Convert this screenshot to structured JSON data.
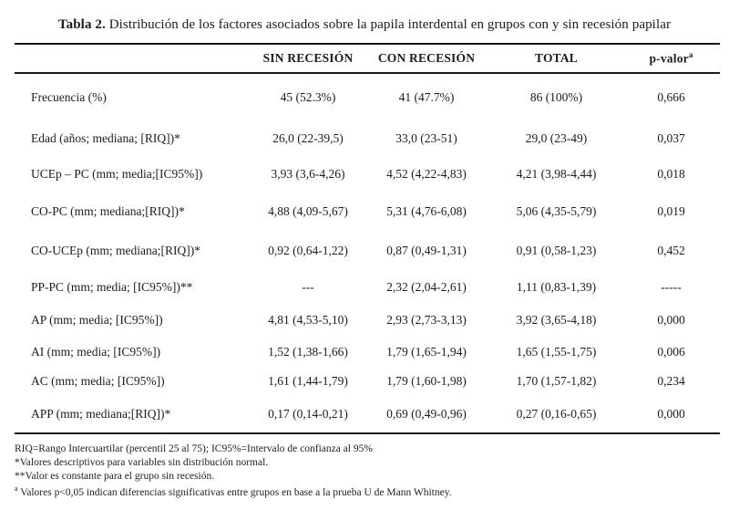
{
  "caption": {
    "label": "Tabla 2.",
    "text": " Distribución de los factores asociados sobre la papila interdental en grupos con y sin recesión papilar"
  },
  "table": {
    "headers": [
      "SIN RECESIÓN",
      "CON RECESIÓN",
      "TOTAL",
      "p-valor"
    ],
    "p_sup": "a",
    "rows": [
      {
        "label": "Frecuencia (%)",
        "sin": "45 (52.3%)",
        "con": "41 (47.7%)",
        "total": "86 (100%)",
        "p": "0,666"
      },
      {
        "label": "Edad (años; mediana; [RIQ])*",
        "sin": "26,0 (22-39,5)",
        "con": "33,0 (23-51)",
        "total": "29,0 (23-49)",
        "p": "0,037"
      },
      {
        "label": "UCEp – PC (mm; media;[IC95%])",
        "sin": "3,93 (3,6-4,26)",
        "con": "4,52 (4,22-4,83)",
        "total": "4,21 (3,98-4,44)",
        "p": "0,018"
      },
      {
        "label": "CO-PC (mm; mediana;[RIQ])*",
        "sin": "4,88 (4,09-5,67)",
        "con": "5,31 (4,76-6,08)",
        "total": "5,06 (4,35-5,79)",
        "p": "0,019"
      },
      {
        "label": "CO-UCEp (mm; mediana;[RIQ])*",
        "sin": "0,92 (0,64-1,22)",
        "con": "0,87 (0,49-1,31)",
        "total": "0,91 (0,58-1,23)",
        "p": "0,452"
      },
      {
        "label": "PP-PC (mm; media; [IC95%])**",
        "sin": "---",
        "con": "2,32 (2,04-2,61)",
        "total": "1,11 (0,83-1,39)",
        "p": "-----"
      },
      {
        "label": "AP (mm; media; [IC95%])",
        "sin": "4,81 (4,53-5,10)",
        "con": "2,93 (2,73-3,13)",
        "total": "3,92 (3,65-4,18)",
        "p": "0,000"
      },
      {
        "label": "AI (mm; media; [IC95%])",
        "sin": "1,52 (1,38-1,66)",
        "con": "1,79 (1,65-1,94)",
        "total": "1,65 (1,55-1,75)",
        "p": "0,006"
      },
      {
        "label": "AC (mm; media; [IC95%])",
        "sin": "1,61 (1,44-1,79)",
        "con": "1,79 (1,60-1,98)",
        "total": "1,70 (1,57-1,82)",
        "p": "0,234"
      },
      {
        "label": "APP (mm; mediana;[RIQ])*",
        "sin": "0,17 (0,14-0,21)",
        "con": "0,69 (0,49-0,96)",
        "total": "0,27 (0,16-0,65)",
        "p": "0,000"
      }
    ]
  },
  "footnotes": {
    "line1": "RIQ=Rango Intercuartilar (percentil 25 al 75); IC95%=Intervalo de confianza al 95%",
    "line2": "*Valores descriptivos para variables sin distribución normal.",
    "line3": "**Valor es constante para el grupo sin recesión.",
    "line4_sup": "a",
    "line4": " Valores p<0,05 indican diferencias significativas entre grupos en base a la prueba U de Mann Whitney."
  }
}
